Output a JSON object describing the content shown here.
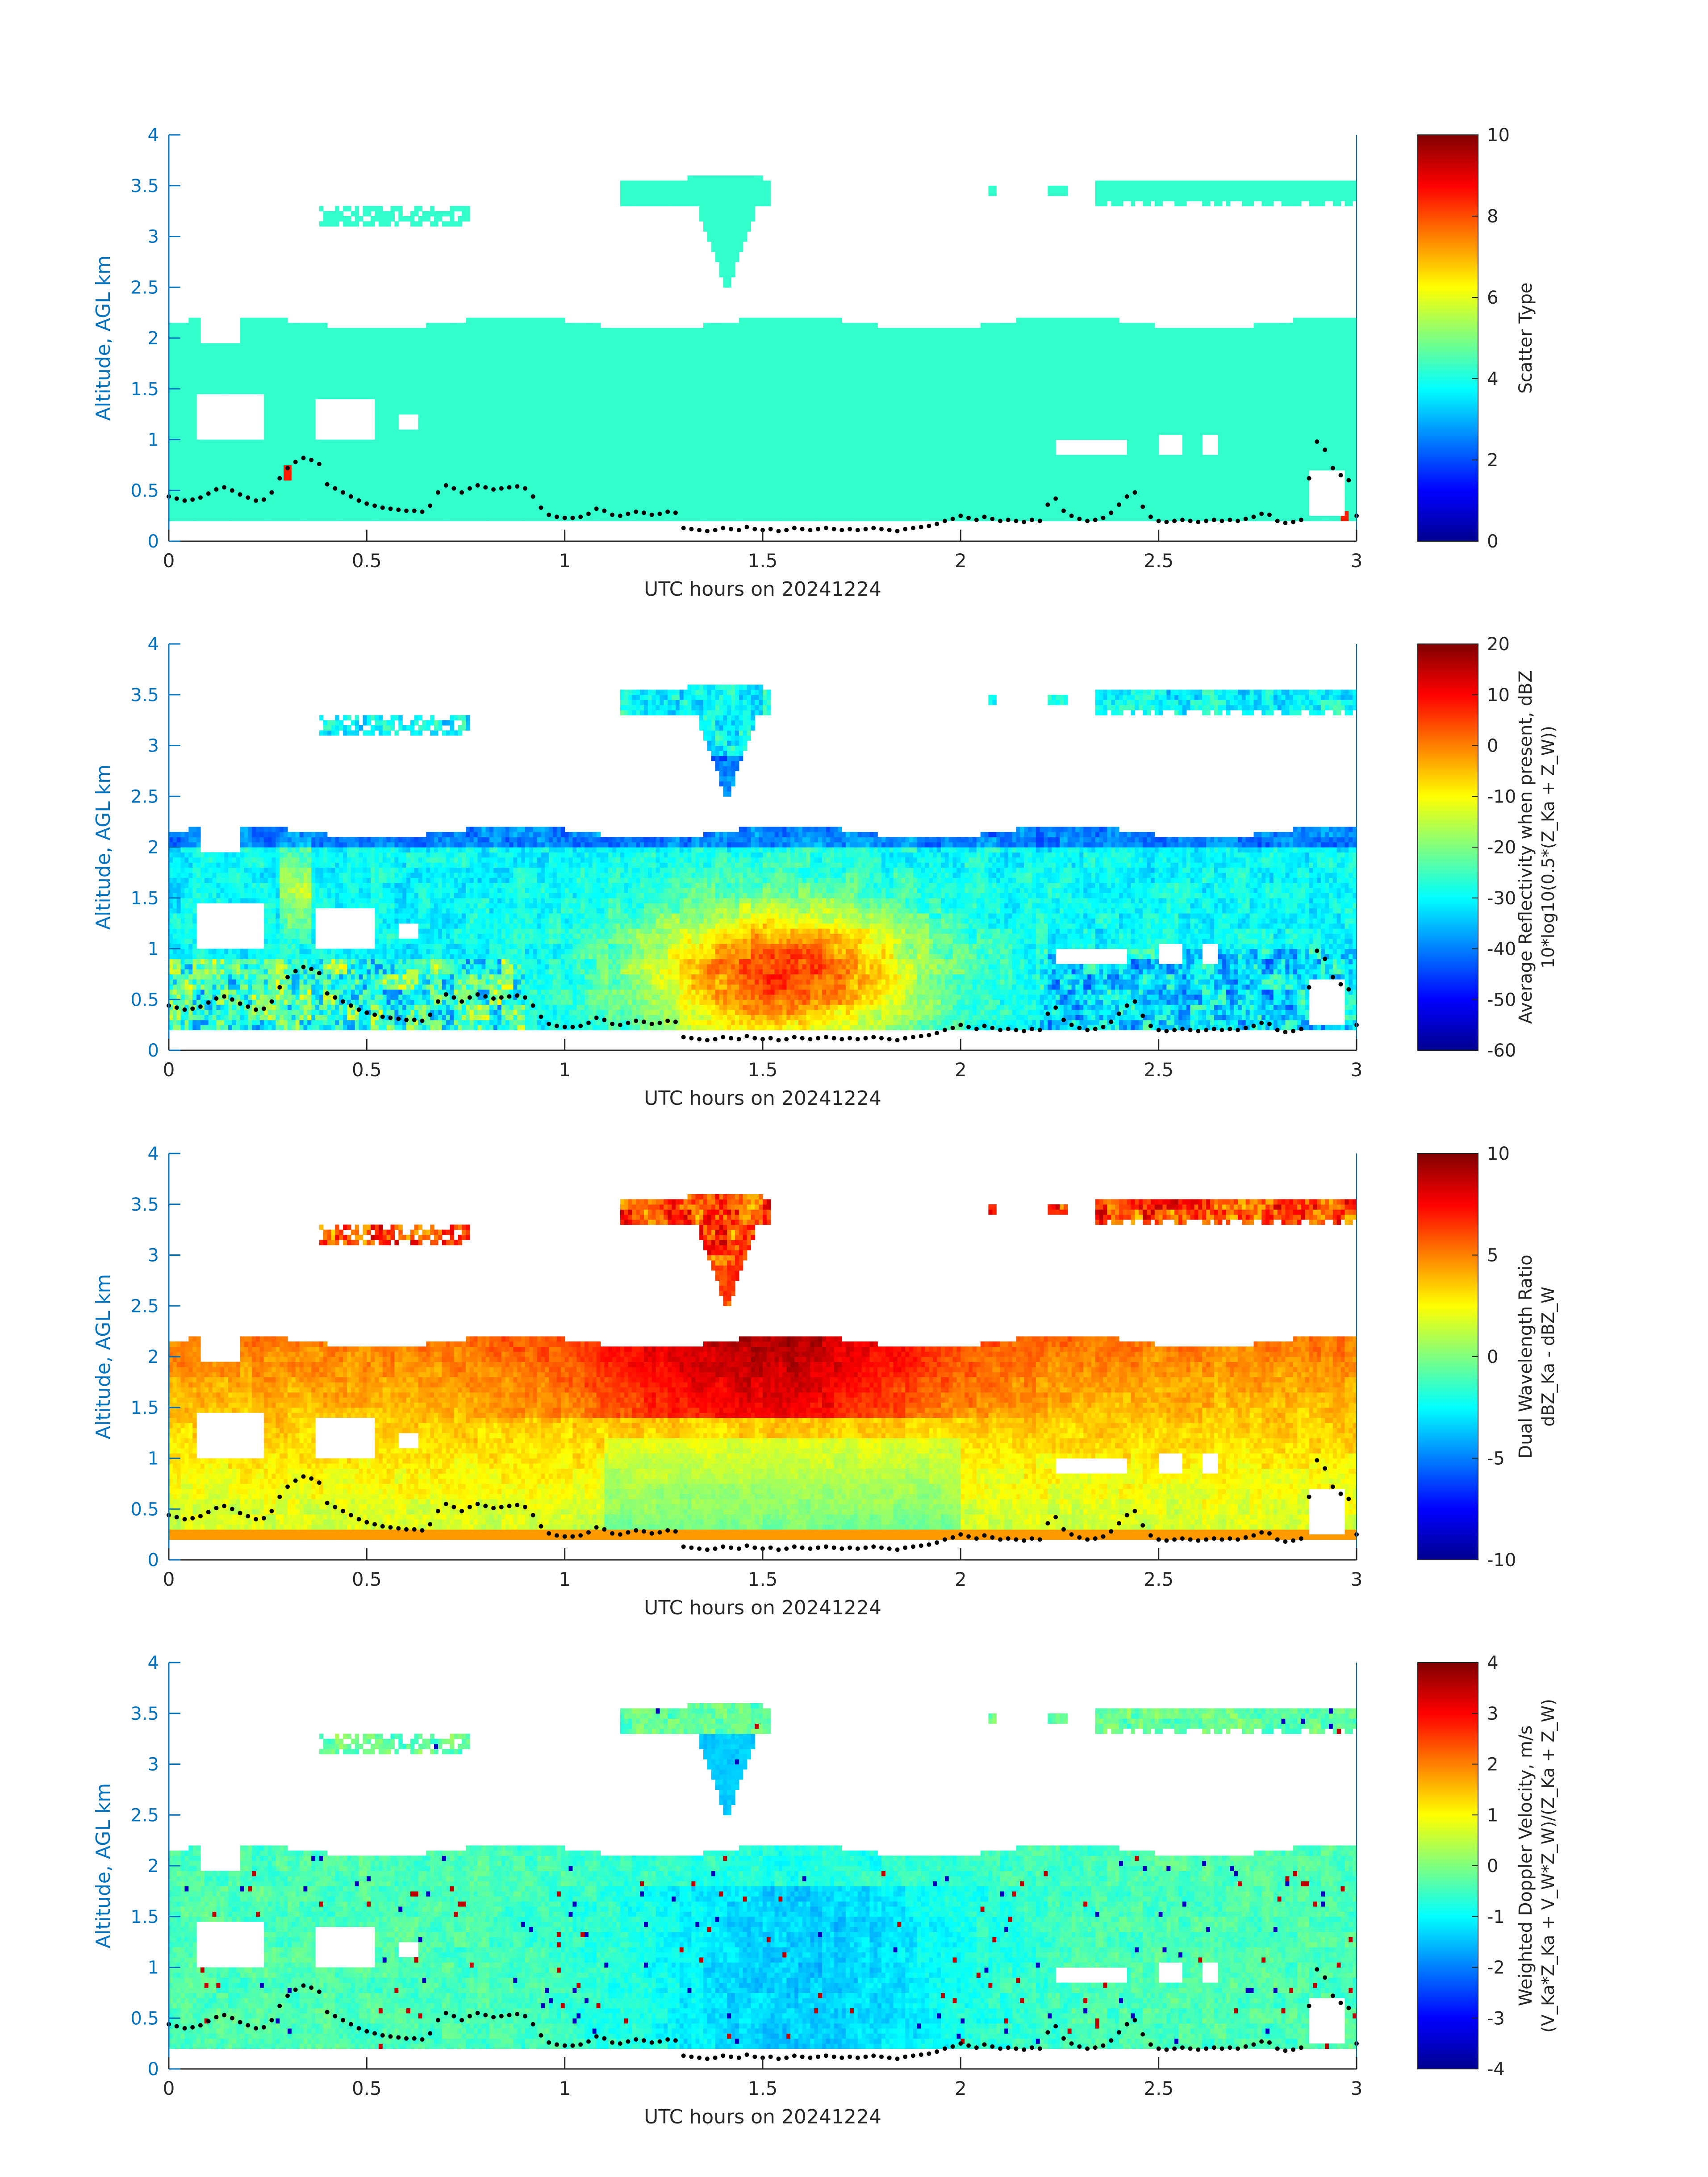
{
  "figure": {
    "xlabel": "UTC hours on 20241224",
    "ylabel": "Altitude, AGL km",
    "xlim": [
      0,
      3
    ],
    "ylim": [
      0,
      4
    ],
    "xticks": [
      "0",
      "0.5",
      "1",
      "1.5",
      "2",
      "2.5",
      "3"
    ],
    "yticks": [
      "0",
      "0.5",
      "1",
      "1.5",
      "2",
      "2.5",
      "3",
      "3.5",
      "4"
    ],
    "axis_color": "#0072BD",
    "colormap": "jet"
  },
  "chart_data": [
    {
      "type": "heatmap",
      "variable": "scatter_type",
      "xlabel": "UTC hours on 20241224",
      "ylabel": "Altitude, AGL km",
      "colorbar_label": "Scatter Type",
      "colorbar_label_sub": "",
      "clim": [
        0,
        10
      ],
      "colorbar_ticks": [
        "0",
        "2",
        "4",
        "6",
        "8",
        "10"
      ],
      "dominant_value": 4.2,
      "cloud_top_km": 2.15,
      "cloud_base_km": 0.18,
      "upper_layer_km": [
        3.25,
        3.55
      ]
    },
    {
      "type": "heatmap",
      "variable": "average_reflectivity",
      "xlabel": "UTC hours on 20241224",
      "ylabel": "Altitude, AGL km",
      "colorbar_label": "Average Reflectivity when present, dBZ",
      "colorbar_label_sub": "10*log10(0.5*(Z_Ka + Z_W))",
      "clim": [
        -60,
        20
      ],
      "colorbar_ticks": [
        "-60",
        "-50",
        "-40",
        "-30",
        "-20",
        "-10",
        "0",
        "10",
        "20"
      ],
      "max_value_region_hours": [
        1.15,
        1.95
      ],
      "max_value": 8
    },
    {
      "type": "heatmap",
      "variable": "dual_wavelength_ratio",
      "xlabel": "UTC hours on 20241224",
      "ylabel": "Altitude, AGL km",
      "colorbar_label": "Dual Wavelength Ratio",
      "colorbar_label_sub": "dBZ_Ka - dBZ_W",
      "clim": [
        -10,
        10
      ],
      "colorbar_ticks": [
        "-10",
        "-5",
        "0",
        "5",
        "10"
      ]
    },
    {
      "type": "heatmap",
      "variable": "weighted_doppler_velocity",
      "xlabel": "UTC hours on 20241224",
      "ylabel": "Altitude, AGL km",
      "colorbar_label": "Weighted Doppler Velocity, m/s",
      "colorbar_label_sub": "(V_Ka*Z_Ka + V_W*Z_W)/(Z_Ka + Z_W)",
      "clim": [
        -4,
        4
      ],
      "colorbar_ticks": [
        "-4",
        "-3",
        "-2",
        "-1",
        "0",
        "1",
        "2",
        "3",
        "4"
      ]
    }
  ],
  "overlay_series": {
    "name": "",
    "color": "#000000",
    "x": [
      0.0,
      0.02,
      0.04,
      0.06,
      0.08,
      0.1,
      0.12,
      0.14,
      0.16,
      0.18,
      0.2,
      0.22,
      0.24,
      0.26,
      0.28,
      0.3,
      0.32,
      0.34,
      0.36,
      0.38,
      0.4,
      0.42,
      0.44,
      0.46,
      0.48,
      0.5,
      0.52,
      0.54,
      0.56,
      0.58,
      0.6,
      0.62,
      0.64,
      0.66,
      0.68,
      0.7,
      0.72,
      0.74,
      0.76,
      0.78,
      0.8,
      0.82,
      0.84,
      0.86,
      0.88,
      0.9,
      0.92,
      0.94,
      0.96,
      0.98,
      1.0,
      1.02,
      1.04,
      1.06,
      1.08,
      1.1,
      1.12,
      1.14,
      1.16,
      1.18,
      1.2,
      1.22,
      1.24,
      1.26,
      1.28,
      1.3,
      1.32,
      1.34,
      1.36,
      1.38,
      1.4,
      1.42,
      1.44,
      1.46,
      1.48,
      1.5,
      1.52,
      1.54,
      1.56,
      1.58,
      1.6,
      1.62,
      1.64,
      1.66,
      1.68,
      1.7,
      1.72,
      1.74,
      1.76,
      1.78,
      1.8,
      1.82,
      1.84,
      1.86,
      1.88,
      1.9,
      1.92,
      1.94,
      1.96,
      1.98,
      2.0,
      2.02,
      2.04,
      2.06,
      2.08,
      2.1,
      2.12,
      2.14,
      2.16,
      2.18,
      2.2,
      2.22,
      2.24,
      2.26,
      2.28,
      2.3,
      2.32,
      2.34,
      2.36,
      2.38,
      2.4,
      2.42,
      2.44,
      2.46,
      2.48,
      2.5,
      2.52,
      2.54,
      2.56,
      2.58,
      2.6,
      2.62,
      2.64,
      2.66,
      2.68,
      2.7,
      2.72,
      2.74,
      2.76,
      2.78,
      2.8,
      2.82,
      2.84,
      2.86,
      2.88,
      2.9,
      2.92,
      2.94,
      2.96,
      2.98,
      3.0
    ],
    "y": [
      0.44,
      0.42,
      0.4,
      0.41,
      0.43,
      0.47,
      0.51,
      0.53,
      0.5,
      0.46,
      0.43,
      0.4,
      0.41,
      0.48,
      0.62,
      0.72,
      0.78,
      0.82,
      0.8,
      0.76,
      0.56,
      0.52,
      0.48,
      0.44,
      0.4,
      0.37,
      0.35,
      0.33,
      0.32,
      0.31,
      0.3,
      0.3,
      0.29,
      0.35,
      0.48,
      0.55,
      0.52,
      0.48,
      0.52,
      0.55,
      0.53,
      0.51,
      0.52,
      0.53,
      0.54,
      0.52,
      0.44,
      0.33,
      0.26,
      0.24,
      0.23,
      0.23,
      0.24,
      0.27,
      0.32,
      0.3,
      0.26,
      0.25,
      0.27,
      0.29,
      0.28,
      0.26,
      0.27,
      0.29,
      0.28,
      0.13,
      0.12,
      0.11,
      0.1,
      0.11,
      0.13,
      0.12,
      0.11,
      0.14,
      0.12,
      0.11,
      0.12,
      0.1,
      0.11,
      0.13,
      0.12,
      0.11,
      0.12,
      0.13,
      0.12,
      0.11,
      0.12,
      0.11,
      0.12,
      0.13,
      0.12,
      0.11,
      0.1,
      0.12,
      0.13,
      0.14,
      0.15,
      0.17,
      0.2,
      0.22,
      0.25,
      0.23,
      0.21,
      0.24,
      0.22,
      0.2,
      0.21,
      0.2,
      0.19,
      0.21,
      0.2,
      0.36,
      0.42,
      0.3,
      0.25,
      0.22,
      0.2,
      0.21,
      0.23,
      0.28,
      0.36,
      0.44,
      0.48,
      0.34,
      0.24,
      0.2,
      0.19,
      0.2,
      0.21,
      0.2,
      0.19,
      0.2,
      0.21,
      0.2,
      0.21,
      0.2,
      0.22,
      0.24,
      0.27,
      0.26,
      0.2,
      0.18,
      0.19,
      0.21,
      0.62,
      0.98,
      0.9,
      0.72,
      0.65,
      0.6,
      0.25
    ]
  }
}
